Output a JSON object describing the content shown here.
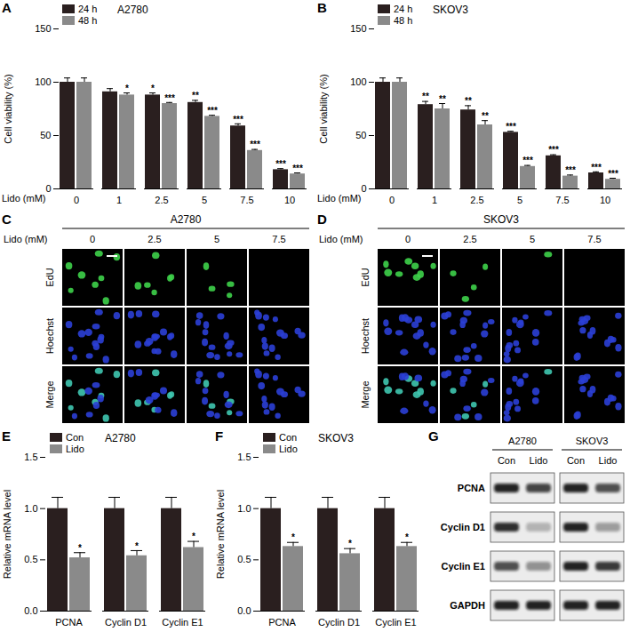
{
  "chart_data": [
    {
      "panel": "A",
      "type": "bar",
      "title": "A2780",
      "x_label": "Lido (mM)",
      "y_label": "Cell viability (%)",
      "categories": [
        "0",
        "1",
        "2.5",
        "5",
        "7.5",
        "10"
      ],
      "series": [
        {
          "name": "24 h",
          "color": "#2a1f1f",
          "values": [
            100,
            91,
            88,
            81,
            59,
            18
          ],
          "errors": [
            4,
            3,
            2,
            2,
            2,
            1
          ],
          "significance": [
            null,
            null,
            "*",
            "**",
            "***",
            "***"
          ]
        },
        {
          "name": "48 h",
          "color": "#8a8a8a",
          "values": [
            100,
            88,
            80,
            68,
            36,
            14
          ],
          "errors": [
            4,
            2,
            1,
            1,
            1,
            1
          ],
          "significance": [
            null,
            "*",
            "***",
            "***",
            "***",
            "***"
          ]
        }
      ],
      "ylim": [
        0,
        150
      ],
      "yticks": [
        0,
        50,
        100,
        150
      ],
      "legend": "top-left"
    },
    {
      "panel": "B",
      "type": "bar",
      "title": "SKOV3",
      "x_label": "Lido (mM)",
      "y_label": "Cell viability (%)",
      "categories": [
        "0",
        "1",
        "2.5",
        "5",
        "7.5",
        "10"
      ],
      "series": [
        {
          "name": "24 h",
          "color": "#2a1f1f",
          "values": [
            100,
            79,
            74,
            53,
            31,
            15
          ],
          "errors": [
            4,
            3,
            4,
            1,
            1,
            1
          ],
          "significance": [
            null,
            "**",
            "**",
            "***",
            "***",
            "***"
          ]
        },
        {
          "name": "48 h",
          "color": "#8a8a8a",
          "values": [
            100,
            75,
            60,
            21,
            12,
            9
          ],
          "errors": [
            4,
            5,
            4,
            1,
            1,
            1
          ],
          "significance": [
            null,
            "**",
            "**",
            "***",
            "***",
            "***"
          ]
        }
      ],
      "ylim": [
        0,
        150
      ],
      "yticks": [
        0,
        50,
        100,
        150
      ],
      "legend": "top-left"
    },
    {
      "panel": "E",
      "type": "bar",
      "title": "A2780",
      "y_label": "Relative mRNA level",
      "categories": [
        "PCNA",
        "Cyclin D1",
        "Cyclin E1"
      ],
      "series": [
        {
          "name": "Con",
          "color": "#2a1f1f",
          "values": [
            1.0,
            1.0,
            1.0
          ],
          "errors": [
            0.11,
            0.11,
            0.11
          ],
          "significance": [
            null,
            null,
            null
          ]
        },
        {
          "name": "Lido",
          "color": "#8a8a8a",
          "values": [
            0.52,
            0.54,
            0.62
          ],
          "errors": [
            0.05,
            0.05,
            0.06
          ],
          "significance": [
            "*",
            "*",
            "*"
          ]
        }
      ],
      "ylim": [
        0,
        1.5
      ],
      "yticks": [
        {
          "value": 0,
          "label": "0.0"
        },
        {
          "value": 0.5,
          "label": "0.5"
        },
        {
          "value": 1.0,
          "label": "1.0"
        },
        {
          "value": 1.5,
          "label": "1.5"
        }
      ],
      "legend": "top-left"
    },
    {
      "panel": "F",
      "type": "bar",
      "title": "SKOV3",
      "y_label": "Relative mRNA level",
      "categories": [
        "PCNA",
        "Cyclin D1",
        "Cyclin E1"
      ],
      "series": [
        {
          "name": "Con",
          "color": "#2a1f1f",
          "values": [
            1.0,
            1.0,
            1.0
          ],
          "errors": [
            0.11,
            0.11,
            0.11
          ],
          "significance": [
            null,
            null,
            null
          ]
        },
        {
          "name": "Lido",
          "color": "#8a8a8a",
          "values": [
            0.63,
            0.56,
            0.63
          ],
          "errors": [
            0.04,
            0.05,
            0.04
          ],
          "significance": [
            "*",
            "*",
            "*"
          ]
        }
      ],
      "ylim": [
        0,
        1.5
      ],
      "yticks": [
        {
          "value": 0,
          "label": "0.0"
        },
        {
          "value": 0.5,
          "label": "0.5"
        },
        {
          "value": 1.0,
          "label": "1.0"
        },
        {
          "value": 1.5,
          "label": "1.5"
        }
      ],
      "legend": "top-left"
    }
  ],
  "images": [
    {
      "panel": "C",
      "title": "A2780",
      "column_header": "Lido (mM)",
      "columns": [
        "0",
        "2.5",
        "5",
        "7.5"
      ],
      "rows": [
        "EdU",
        "Hoechst",
        "Merge"
      ],
      "edu_fraction": [
        0.6,
        0.45,
        0.25,
        0
      ]
    },
    {
      "panel": "D",
      "title": "SKOV3",
      "column_header": "Lido (mM)",
      "columns": [
        "0",
        "2.5",
        "5",
        "7.5"
      ],
      "rows": [
        "EdU",
        "Hoechst",
        "Merge"
      ],
      "edu_fraction": [
        0.6,
        0.3,
        0.1,
        0
      ]
    }
  ],
  "blot": {
    "panel": "G",
    "groups": [
      {
        "name": "A2780",
        "lanes": [
          "Con",
          "Lido"
        ]
      },
      {
        "name": "SKOV3",
        "lanes": [
          "Con",
          "Lido"
        ]
      }
    ],
    "rows": [
      {
        "label": "PCNA",
        "band_intensity": [
          0.9,
          0.75,
          0.9,
          0.7
        ]
      },
      {
        "label": "Cyclin D1",
        "band_intensity": [
          0.85,
          0.25,
          0.9,
          0.35
        ]
      },
      {
        "label": "Cyclin E1",
        "band_intensity": [
          0.7,
          0.4,
          0.9,
          0.8
        ]
      },
      {
        "label": "GAPDH",
        "band_intensity": [
          0.9,
          0.9,
          0.9,
          0.9
        ]
      }
    ]
  }
}
